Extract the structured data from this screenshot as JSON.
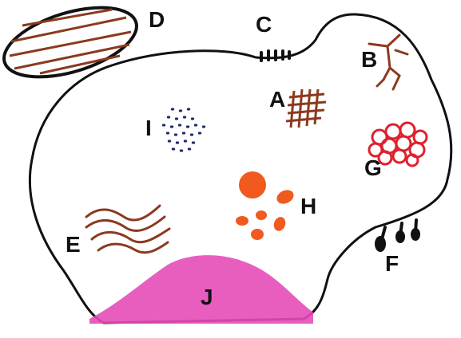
{
  "labels": {
    "a": "A",
    "b": "B",
    "c": "C",
    "d": "D",
    "e": "E",
    "f": "F",
    "g": "G",
    "h": "H",
    "i": "I",
    "j": "J"
  },
  "colors": {
    "outline": "#111111",
    "brown": "#8b3a1e",
    "navy": "#1c2a6b",
    "red": "#e0202e",
    "orange": "#f05a1e",
    "magenta": "#e54cb8"
  },
  "icons": {
    "a": "crosshatch-grid",
    "b": "branching-lines",
    "c": "short-protrusions",
    "d": "striped-oval",
    "e": "wavy-lines",
    "f": "knobbed-protrusions",
    "g": "red-circle-cluster",
    "h": "orange-blobs",
    "i": "blue-dots",
    "j": "magenta-mound"
  }
}
